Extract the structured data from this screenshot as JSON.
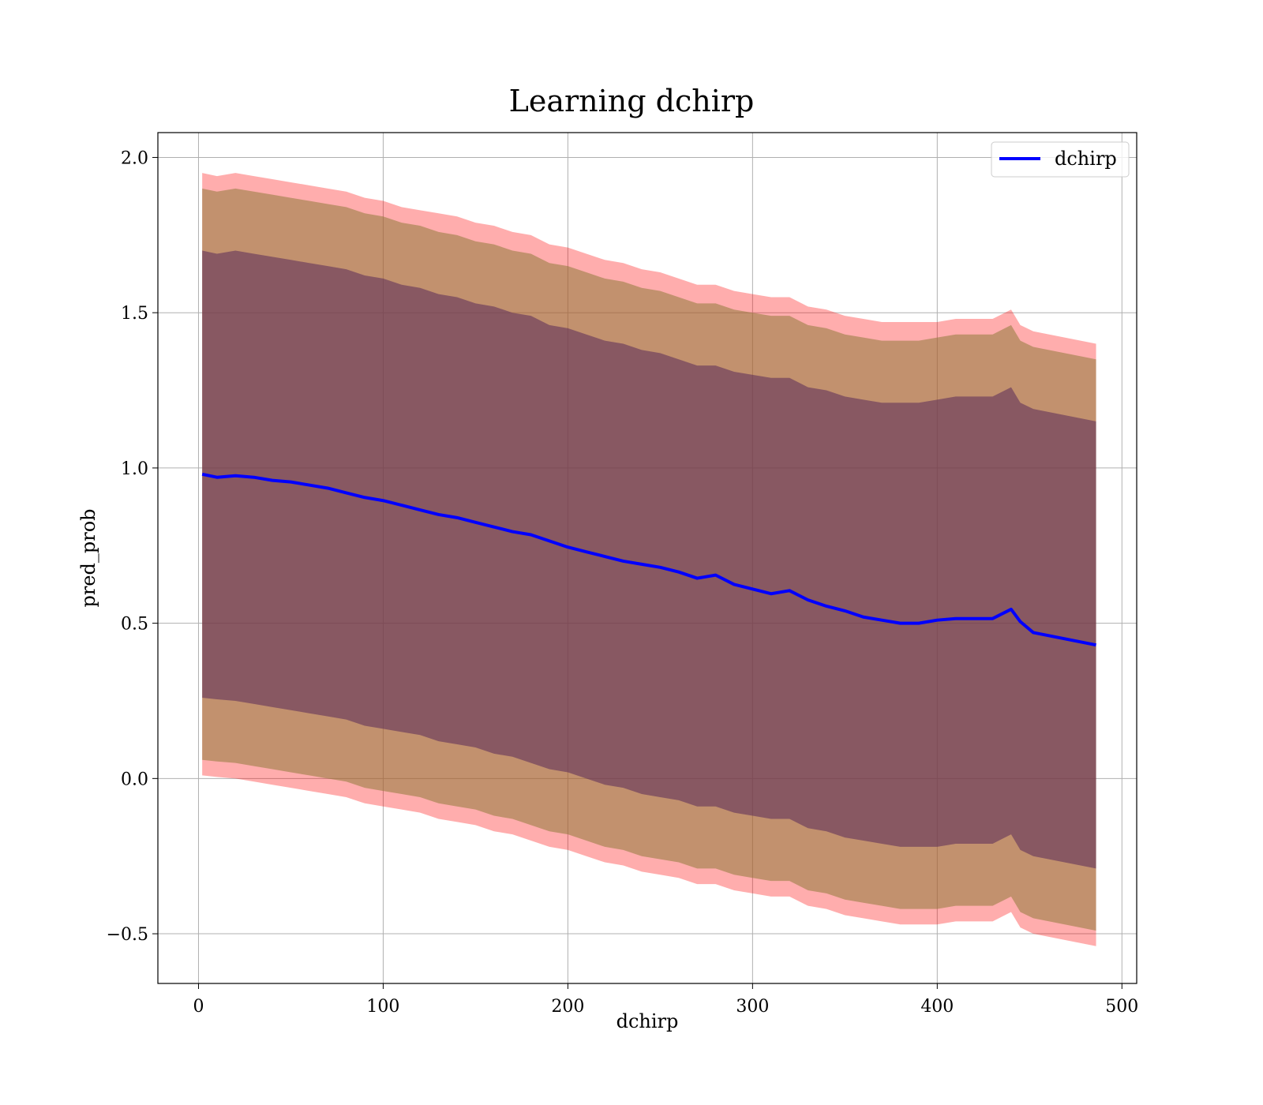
{
  "chart_data": {
    "type": "line",
    "title": "Learning dchirp",
    "xlabel": "dchirp",
    "ylabel": "pred_prob",
    "xlim": [
      -22,
      508
    ],
    "ylim": [
      -0.66,
      2.08
    ],
    "xticks": [
      0,
      100,
      200,
      300,
      400,
      500
    ],
    "xtick_labels": [
      "0",
      "100",
      "200",
      "300",
      "400",
      "500"
    ],
    "yticks": [
      -0.5,
      0.0,
      0.5,
      1.0,
      1.5,
      2.0
    ],
    "ytick_labels": [
      "−0.5",
      "0.0",
      "0.5",
      "1.0",
      "1.5",
      "2.0"
    ],
    "grid": true,
    "legend_position": "top-right",
    "colors": {
      "line": "#0000ff",
      "band_outer": "#ff0000",
      "band_middle": "#8f7a3a",
      "band_inner": "#5a2a5a"
    },
    "series": [
      {
        "name": "dchirp",
        "x": [
          2,
          10,
          20,
          30,
          40,
          50,
          60,
          70,
          80,
          90,
          100,
          110,
          120,
          130,
          140,
          150,
          160,
          170,
          180,
          190,
          200,
          210,
          220,
          230,
          240,
          250,
          260,
          270,
          280,
          290,
          300,
          310,
          320,
          330,
          340,
          350,
          360,
          370,
          380,
          390,
          400,
          410,
          420,
          430,
          440,
          445,
          452,
          486
        ],
        "y": [
          0.98,
          0.97,
          0.975,
          0.97,
          0.96,
          0.955,
          0.945,
          0.935,
          0.92,
          0.905,
          0.895,
          0.88,
          0.865,
          0.85,
          0.84,
          0.825,
          0.81,
          0.795,
          0.785,
          0.765,
          0.745,
          0.73,
          0.715,
          0.7,
          0.69,
          0.68,
          0.665,
          0.645,
          0.655,
          0.625,
          0.61,
          0.595,
          0.605,
          0.575,
          0.555,
          0.54,
          0.52,
          0.51,
          0.5,
          0.5,
          0.51,
          0.515,
          0.515,
          0.515,
          0.545,
          0.505,
          0.47,
          0.43
        ]
      }
    ],
    "bands": [
      {
        "label": "outer",
        "x": [
          2,
          10,
          20,
          30,
          40,
          50,
          60,
          70,
          80,
          90,
          100,
          110,
          120,
          130,
          140,
          150,
          160,
          170,
          180,
          190,
          200,
          210,
          220,
          230,
          240,
          250,
          260,
          270,
          280,
          290,
          300,
          310,
          320,
          330,
          340,
          350,
          360,
          370,
          380,
          390,
          400,
          410,
          420,
          430,
          440,
          445,
          452,
          486
        ],
        "upper": [
          1.95,
          1.94,
          1.95,
          1.94,
          1.93,
          1.92,
          1.91,
          1.9,
          1.89,
          1.87,
          1.86,
          1.84,
          1.83,
          1.82,
          1.81,
          1.79,
          1.78,
          1.76,
          1.75,
          1.72,
          1.71,
          1.69,
          1.67,
          1.66,
          1.64,
          1.63,
          1.61,
          1.59,
          1.59,
          1.57,
          1.56,
          1.55,
          1.55,
          1.52,
          1.51,
          1.49,
          1.48,
          1.47,
          1.47,
          1.47,
          1.47,
          1.48,
          1.48,
          1.48,
          1.51,
          1.46,
          1.44,
          1.4
        ],
        "lower": [
          0.01,
          0.005,
          0.0,
          -0.01,
          -0.02,
          -0.03,
          -0.04,
          -0.05,
          -0.06,
          -0.08,
          -0.09,
          -0.1,
          -0.11,
          -0.13,
          -0.14,
          -0.15,
          -0.17,
          -0.18,
          -0.2,
          -0.22,
          -0.23,
          -0.25,
          -0.27,
          -0.28,
          -0.3,
          -0.31,
          -0.32,
          -0.34,
          -0.34,
          -0.36,
          -0.37,
          -0.38,
          -0.38,
          -0.41,
          -0.42,
          -0.44,
          -0.45,
          -0.46,
          -0.47,
          -0.47,
          -0.47,
          -0.46,
          -0.46,
          -0.46,
          -0.43,
          -0.48,
          -0.5,
          -0.54
        ]
      },
      {
        "label": "middle",
        "x": [
          2,
          10,
          20,
          30,
          40,
          50,
          60,
          70,
          80,
          90,
          100,
          110,
          120,
          130,
          140,
          150,
          160,
          170,
          180,
          190,
          200,
          210,
          220,
          230,
          240,
          250,
          260,
          270,
          280,
          290,
          300,
          310,
          320,
          330,
          340,
          350,
          360,
          370,
          380,
          390,
          400,
          410,
          420,
          430,
          440,
          445,
          452,
          486
        ],
        "upper": [
          1.9,
          1.89,
          1.9,
          1.89,
          1.88,
          1.87,
          1.86,
          1.85,
          1.84,
          1.82,
          1.81,
          1.79,
          1.78,
          1.76,
          1.75,
          1.73,
          1.72,
          1.7,
          1.69,
          1.66,
          1.65,
          1.63,
          1.61,
          1.6,
          1.58,
          1.57,
          1.55,
          1.53,
          1.53,
          1.51,
          1.5,
          1.49,
          1.49,
          1.46,
          1.45,
          1.43,
          1.42,
          1.41,
          1.41,
          1.41,
          1.42,
          1.43,
          1.43,
          1.43,
          1.46,
          1.41,
          1.39,
          1.35
        ],
        "lower": [
          0.06,
          0.055,
          0.05,
          0.04,
          0.03,
          0.02,
          0.01,
          0.0,
          -0.01,
          -0.03,
          -0.04,
          -0.05,
          -0.06,
          -0.08,
          -0.09,
          -0.1,
          -0.12,
          -0.13,
          -0.15,
          -0.17,
          -0.18,
          -0.2,
          -0.22,
          -0.23,
          -0.25,
          -0.26,
          -0.27,
          -0.29,
          -0.29,
          -0.31,
          -0.32,
          -0.33,
          -0.33,
          -0.36,
          -0.37,
          -0.39,
          -0.4,
          -0.41,
          -0.42,
          -0.42,
          -0.42,
          -0.41,
          -0.41,
          -0.41,
          -0.38,
          -0.43,
          -0.45,
          -0.49
        ]
      },
      {
        "label": "inner",
        "x": [
          2,
          10,
          20,
          30,
          40,
          50,
          60,
          70,
          80,
          90,
          100,
          110,
          120,
          130,
          140,
          150,
          160,
          170,
          180,
          190,
          200,
          210,
          220,
          230,
          240,
          250,
          260,
          270,
          280,
          290,
          300,
          310,
          320,
          330,
          340,
          350,
          360,
          370,
          380,
          390,
          400,
          410,
          420,
          430,
          440,
          445,
          452,
          486
        ],
        "upper": [
          1.7,
          1.69,
          1.7,
          1.69,
          1.68,
          1.67,
          1.66,
          1.65,
          1.64,
          1.62,
          1.61,
          1.59,
          1.58,
          1.56,
          1.55,
          1.53,
          1.52,
          1.5,
          1.49,
          1.46,
          1.45,
          1.43,
          1.41,
          1.4,
          1.38,
          1.37,
          1.35,
          1.33,
          1.33,
          1.31,
          1.3,
          1.29,
          1.29,
          1.26,
          1.25,
          1.23,
          1.22,
          1.21,
          1.21,
          1.21,
          1.22,
          1.23,
          1.23,
          1.23,
          1.26,
          1.21,
          1.19,
          1.15
        ],
        "lower": [
          0.26,
          0.255,
          0.25,
          0.24,
          0.23,
          0.22,
          0.21,
          0.2,
          0.19,
          0.17,
          0.16,
          0.15,
          0.14,
          0.12,
          0.11,
          0.1,
          0.08,
          0.07,
          0.05,
          0.03,
          0.02,
          0.0,
          -0.02,
          -0.03,
          -0.05,
          -0.06,
          -0.07,
          -0.09,
          -0.09,
          -0.11,
          -0.12,
          -0.13,
          -0.13,
          -0.16,
          -0.17,
          -0.19,
          -0.2,
          -0.21,
          -0.22,
          -0.22,
          -0.22,
          -0.21,
          -0.21,
          -0.21,
          -0.18,
          -0.23,
          -0.25,
          -0.29
        ]
      }
    ]
  }
}
